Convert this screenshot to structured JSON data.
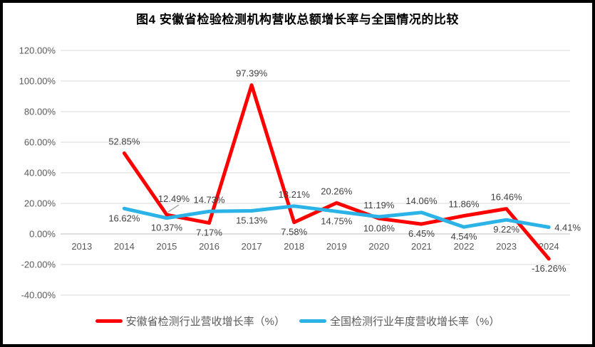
{
  "colors": {
    "anhui_line": "#FF0000",
    "national_line": "#2BB3E8",
    "gridline": "#D9D9D9",
    "axis_line": "#BFBFBF",
    "tick_label": "#595959",
    "data_label": "#404040",
    "leader_line": "#A6A6A6",
    "frame_border": "#000000",
    "title_color": "#000000"
  },
  "chart_data": {
    "type": "line",
    "title": "图4  安徽省检验检测机构营收总额增长率与全国情况的比较",
    "xlabel": "",
    "ylabel": "",
    "categories": [
      "2013",
      "2014",
      "2015",
      "2016",
      "2017",
      "2018",
      "2019",
      "2020",
      "2021",
      "2022",
      "2023",
      "2024"
    ],
    "series": [
      {
        "key": "anhui",
        "name": "安徽省检测行业营收增长率（%）",
        "color": "#FF0000",
        "values": [
          null,
          52.85,
          12.49,
          7.17,
          97.39,
          7.58,
          20.26,
          10.08,
          6.45,
          11.86,
          16.46,
          -16.26
        ],
        "data_labels": [
          null,
          "52.85%",
          "12.49%",
          "7.17%",
          "97.39%",
          "7.58%",
          "20.26%",
          "10.08%",
          "6.45%",
          "11.86%",
          "16.46%",
          "-16.26%"
        ],
        "label_positions": [
          null,
          "above",
          "above-leader",
          "below",
          "above",
          "below",
          "above",
          "below",
          "below",
          "above",
          "above",
          "below"
        ]
      },
      {
        "key": "national",
        "name": "全国检测行业年度营收增长率（%）",
        "color": "#2BB3E8",
        "values": [
          null,
          16.62,
          10.37,
          14.73,
          15.13,
          18.21,
          14.75,
          11.19,
          14.06,
          4.54,
          9.22,
          4.41
        ],
        "data_labels": [
          null,
          "16.62%",
          "10.37%",
          "14.73%",
          "15.13%",
          "18.21%",
          "14.75%",
          "11.19%",
          "14.06%",
          "4.54%",
          "9.22%",
          "4.41%"
        ],
        "label_positions": [
          null,
          "below",
          "below",
          "above",
          "below",
          "above",
          "below",
          "above",
          "above",
          "below",
          "below",
          "right"
        ]
      }
    ],
    "ylim": [
      -40,
      120
    ],
    "ytick_step": 20,
    "ytick_labels": [
      "120.00%",
      "100.00%",
      "80.00%",
      "60.00%",
      "40.00%",
      "20.00%",
      "0.00%",
      "-20.00%",
      "-40.00%"
    ],
    "grid": true,
    "legend_position": "bottom"
  }
}
